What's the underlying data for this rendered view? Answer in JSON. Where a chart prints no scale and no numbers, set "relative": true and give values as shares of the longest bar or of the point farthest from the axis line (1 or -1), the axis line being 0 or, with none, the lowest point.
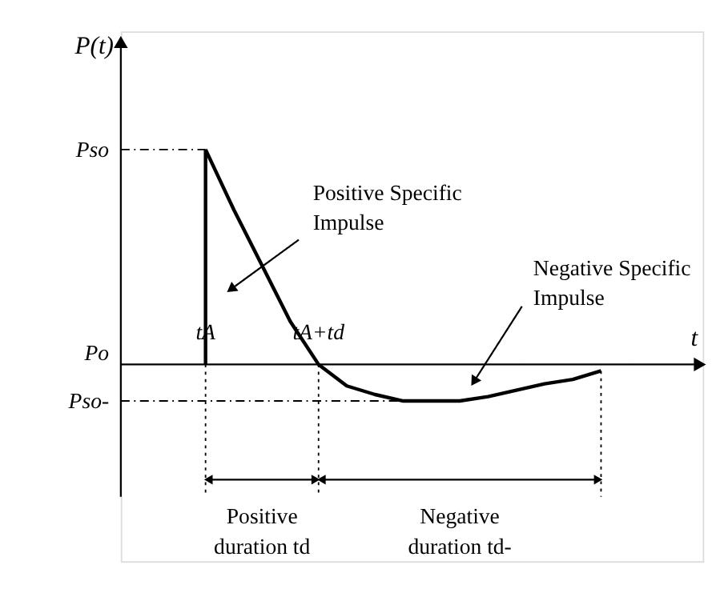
{
  "chart_data": {
    "type": "line",
    "relative": true,
    "xlabel": "t",
    "ylabel": "P(t)",
    "categories": [
      null,
      null,
      null,
      "tA",
      null,
      null,
      null,
      "tA+td",
      null,
      null,
      null,
      null,
      null,
      null,
      null,
      null,
      null,
      null,
      null,
      null,
      null
    ],
    "line_style": "solid",
    "series": [
      {
        "color": "#000000",
        "values": [
          null,
          null,
          null,
          1,
          0.72,
          0.46,
          0.2,
          0,
          -0.1,
          -0.14,
          -0.17,
          -0.17,
          -0.17,
          -0.15,
          -0.12,
          -0.09,
          -0.07,
          -0.03,
          null,
          null,
          null
        ]
      }
    ],
    "ref_lines": [
      {
        "axis": "y",
        "value": 0,
        "label": "Po"
      }
    ],
    "annotations": [
      "Pso",
      "Pso-",
      "Positive Specific Impulse",
      "Negative Specific Impulse",
      "Positive duration td",
      "Negative duration td-"
    ]
  }
}
